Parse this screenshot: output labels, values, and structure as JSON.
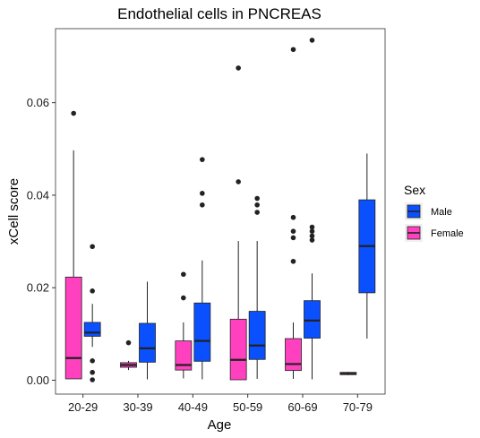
{
  "chart_data": {
    "type": "box",
    "title": "Endothelial cells in PNCREAS",
    "xlabel": "Age",
    "ylabel": "xCell score",
    "categories": [
      "20-29",
      "30-39",
      "40-49",
      "50-59",
      "60-69",
      "70-79"
    ],
    "ylim": [
      -0.003,
      0.076
    ],
    "yticks": [
      0.0,
      0.02,
      0.04,
      0.06
    ],
    "ytick_labels": [
      "0.00",
      "0.02",
      "0.04",
      "0.06"
    ],
    "grid": false,
    "legend": {
      "title": "Sex",
      "placement": "right",
      "entries": [
        {
          "label": "Male",
          "color": "#0a50ff"
        },
        {
          "label": "Female",
          "color": "#ff40bf"
        }
      ]
    },
    "series": [
      {
        "name": "Female",
        "color": "#ff40bf",
        "boxes": [
          {
            "category": "20-29",
            "min": 0.0003,
            "q1": 0.0003,
            "median": 0.0048,
            "q3": 0.0223,
            "max": 0.0497,
            "outliers": [
              0.0577
            ]
          },
          {
            "category": "30-39",
            "min": 0.0022,
            "q1": 0.0028,
            "median": 0.0033,
            "q3": 0.0038,
            "max": 0.0042,
            "outliers": [
              0.0081
            ]
          },
          {
            "category": "40-49",
            "min": 0.0004,
            "q1": 0.0022,
            "median": 0.0033,
            "q3": 0.0085,
            "max": 0.0125,
            "outliers": [
              0.0178,
              0.0229
            ]
          },
          {
            "category": "50-59",
            "min": 0.0001,
            "q1": 0.0001,
            "median": 0.0044,
            "q3": 0.0132,
            "max": 0.0301,
            "outliers": [
              0.0429,
              0.0675
            ]
          },
          {
            "category": "60-69",
            "min": 0.0003,
            "q1": 0.0021,
            "median": 0.0035,
            "q3": 0.009,
            "max": 0.0125,
            "outliers": [
              0.0257,
              0.0308,
              0.0322,
              0.0352,
              0.0715
            ]
          },
          {
            "category": "70-79",
            "min": 0.0011,
            "q1": 0.0012,
            "median": 0.0015,
            "q3": 0.0017,
            "max": 0.0018,
            "outliers": []
          }
        ]
      },
      {
        "name": "Male",
        "color": "#0a50ff",
        "boxes": [
          {
            "category": "20-29",
            "min": 0.0072,
            "q1": 0.0095,
            "median": 0.0103,
            "q3": 0.0125,
            "max": 0.0165,
            "outliers": [
              0.0289,
              0.0193,
              0.0042,
              0.0017,
              0.0001
            ]
          },
          {
            "category": "30-39",
            "min": 0.0002,
            "q1": 0.0039,
            "median": 0.0069,
            "q3": 0.0123,
            "max": 0.0213,
            "outliers": []
          },
          {
            "category": "40-49",
            "min": 0.0002,
            "q1": 0.0041,
            "median": 0.0085,
            "q3": 0.0167,
            "max": 0.0259,
            "outliers": [
              0.0379,
              0.0404,
              0.0477
            ]
          },
          {
            "category": "50-59",
            "min": 0.0003,
            "q1": 0.0045,
            "median": 0.0075,
            "q3": 0.0149,
            "max": 0.0301,
            "outliers": [
              0.0363,
              0.0379,
              0.0393
            ]
          },
          {
            "category": "60-69",
            "min": 0.0002,
            "q1": 0.0091,
            "median": 0.0129,
            "q3": 0.0172,
            "max": 0.0231,
            "outliers": [
              0.0303,
              0.0312,
              0.0322,
              0.0331,
              0.0735
            ]
          },
          {
            "category": "70-79",
            "min": 0.009,
            "q1": 0.0189,
            "median": 0.029,
            "q3": 0.039,
            "max": 0.049,
            "outliers": []
          }
        ]
      }
    ]
  }
}
